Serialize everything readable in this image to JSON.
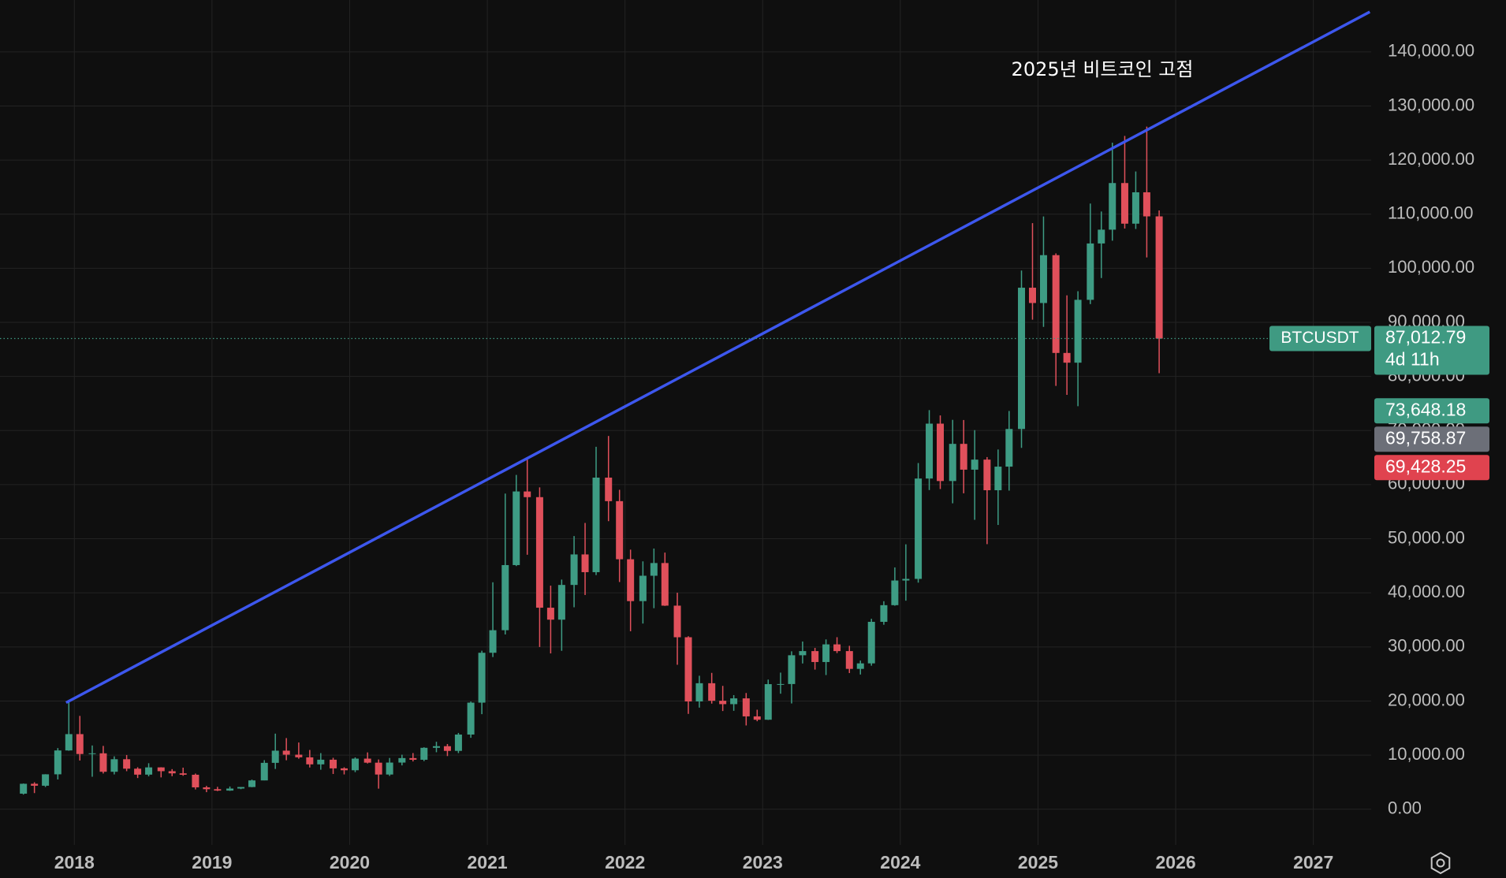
{
  "chart_data": {
    "type": "candlestick",
    "annotation": "2025년 비트코인 고점",
    "up_color": "#3e9c84",
    "down_color": "#e0505b",
    "grid": true,
    "xlim": [
      2017.46,
      2027.42
    ],
    "xticks": [
      2018,
      2019,
      2020,
      2021,
      2022,
      2023,
      2024,
      2025,
      2026,
      2027
    ],
    "ylim": [
      -6600,
      149600
    ],
    "yticks": [
      {
        "value": 0,
        "label": "0.00"
      },
      {
        "value": 10000,
        "label": "10,000.00"
      },
      {
        "value": 20000,
        "label": "20,000.00"
      },
      {
        "value": 30000,
        "label": "30,000.00"
      },
      {
        "value": 40000,
        "label": "40,000.00"
      },
      {
        "value": 50000,
        "label": "50,000.00"
      },
      {
        "value": 60000,
        "label": "60,000.00"
      },
      {
        "value": 70000,
        "label": "70,000.00"
      },
      {
        "value": 80000,
        "label": "80,000.00"
      },
      {
        "value": 90000,
        "label": "90,000.00"
      },
      {
        "value": 100000,
        "label": "100,000.00"
      },
      {
        "value": 110000,
        "label": "110,000.00"
      },
      {
        "value": 120000,
        "label": "120,000.00"
      },
      {
        "value": 130000,
        "label": "130,000.00"
      },
      {
        "value": 140000,
        "label": "140,000.00"
      }
    ],
    "trendline": {
      "color": "#3d57ee",
      "x": [
        2017.94,
        2027.41
      ],
      "y": [
        19700,
        147400
      ]
    },
    "last_price": {
      "symbol": "BTCUSDT",
      "value": 87012.79,
      "label": "87,012.79",
      "countdown": "4d 11h",
      "color": "#3f9a82"
    },
    "price_labels": [
      {
        "value": 73648.18,
        "label": "73,648.18",
        "color": "#3f9a82"
      },
      {
        "value": 69758.87,
        "label": "69,758.87",
        "color": "#6c6f78"
      },
      {
        "value": 69428.25,
        "label": "69,428.25",
        "color": "#e0434f"
      }
    ],
    "candles": {
      "x": [
        2017.63,
        2017.71,
        2017.79,
        2017.88,
        2017.96,
        2018.04,
        2018.13,
        2018.21,
        2018.29,
        2018.38,
        2018.46,
        2018.54,
        2018.63,
        2018.71,
        2018.79,
        2018.88,
        2018.96,
        2019.04,
        2019.13,
        2019.21,
        2019.29,
        2019.38,
        2019.46,
        2019.54,
        2019.63,
        2019.71,
        2019.79,
        2019.88,
        2019.96,
        2020.04,
        2020.13,
        2020.21,
        2020.29,
        2020.38,
        2020.46,
        2020.54,
        2020.63,
        2020.71,
        2020.79,
        2020.88,
        2020.96,
        2021.04,
        2021.13,
        2021.21,
        2021.29,
        2021.38,
        2021.46,
        2021.54,
        2021.63,
        2021.71,
        2021.79,
        2021.88,
        2021.96,
        2022.04,
        2022.13,
        2022.21,
        2022.29,
        2022.38,
        2022.46,
        2022.54,
        2022.63,
        2022.71,
        2022.79,
        2022.88,
        2022.96,
        2023.04,
        2023.13,
        2023.21,
        2023.29,
        2023.38,
        2023.46,
        2023.54,
        2023.63,
        2023.71,
        2023.79,
        2023.88,
        2023.96,
        2024.04,
        2024.13,
        2024.21,
        2024.29,
        2024.38,
        2024.46,
        2024.54,
        2024.63,
        2024.71,
        2024.79,
        2024.88,
        2024.96,
        2025.04,
        2025.13,
        2025.21,
        2025.29,
        2025.38,
        2025.46,
        2025.54,
        2025.63,
        2025.71,
        2025.79,
        2025.88
      ],
      "open": [
        2870,
        4700,
        4340,
        6450,
        10860,
        13880,
        10200,
        10330,
        6920,
        9240,
        7490,
        6390,
        7730,
        7030,
        6630,
        6370,
        4040,
        3700,
        3440,
        3820,
        4100,
        5320,
        8570,
        10820,
        10080,
        9590,
        8290,
        9150,
        7550,
        7200,
        9350,
        8600,
        6410,
        8620,
        9450,
        9140,
        11350,
        11650,
        10780,
        13800,
        19700,
        28920,
        33090,
        45130,
        58740,
        57690,
        37250,
        35040,
        41460,
        47100,
        43820,
        61300,
        56950,
        46210,
        38470,
        43160,
        45510,
        37630,
        31790,
        19920,
        23290,
        20050,
        19420,
        20490,
        17160,
        16540,
        23120,
        23140,
        28460,
        29230,
        27210,
        30470,
        29230,
        25940,
        26960,
        34640,
        37720,
        42280,
        42580,
        61130,
        71280,
        60670,
        67540,
        62770,
        64630,
        58970,
        63330,
        70290,
        96410,
        93580,
        102430,
        84350,
        82550,
        94170,
        104590,
        107140,
        115760,
        108250,
        114050,
        109600
      ],
      "high": [
        4750,
        4980,
        6470,
        11300,
        19800,
        17250,
        11780,
        11700,
        9770,
        10020,
        7760,
        8500,
        7760,
        7410,
        7680,
        6590,
        4310,
        4140,
        4200,
        4100,
        5470,
        9070,
        13970,
        13150,
        12330,
        10950,
        10370,
        9500,
        7750,
        9580,
        10500,
        9190,
        9470,
        10080,
        10380,
        11450,
        12470,
        12050,
        14100,
        19900,
        29300,
        41950,
        58350,
        61800,
        64850,
        59500,
        41330,
        42450,
        50500,
        52920,
        66999,
        69000,
        59050,
        47990,
        45820,
        48190,
        47440,
        40020,
        31980,
        24670,
        25200,
        22800,
        21090,
        21480,
        18390,
        23960,
        25250,
        29190,
        31000,
        29820,
        31390,
        31800,
        30200,
        27480,
        35200,
        38450,
        44700,
        48970,
        64000,
        73780,
        72800,
        71980,
        71950,
        70080,
        65100,
        66500,
        73620,
        99590,
        108350,
        109590,
        102750,
        95000,
        95760,
        111970,
        110500,
        123220,
        124470,
        117900,
        126200,
        110700
      ],
      "low": [
        2700,
        2980,
        4110,
        5500,
        10800,
        9000,
        6000,
        6600,
        6430,
        7030,
        5760,
        6070,
        5880,
        6100,
        6180,
        3650,
        3150,
        3350,
        3390,
        3700,
        4060,
        5330,
        7440,
        9050,
        9330,
        7710,
        7300,
        6510,
        6430,
        6850,
        8450,
        3800,
        6150,
        8100,
        8830,
        8890,
        10530,
        9820,
        10370,
        13200,
        17570,
        28130,
        32300,
        44950,
        47040,
        30000,
        28800,
        29280,
        37330,
        39600,
        43280,
        53250,
        42000,
        32900,
        34320,
        37160,
        37580,
        26700,
        17620,
        18780,
        19520,
        18150,
        18190,
        15480,
        16260,
        16500,
        21350,
        19550,
        26940,
        25810,
        24800,
        28860,
        25170,
        24900,
        26530,
        34100,
        37620,
        38550,
        41880,
        59000,
        59190,
        56550,
        58400,
        53500,
        49000,
        52550,
        58900,
        66800,
        90500,
        89160,
        78260,
        76600,
        74500,
        93380,
        98200,
        105100,
        107350,
        107270,
        102000,
        80600
      ],
      "close": [
        4700,
        4340,
        6450,
        10860,
        13880,
        10200,
        10330,
        6920,
        9240,
        7490,
        6390,
        7730,
        7030,
        6630,
        6370,
        4040,
        3700,
        3440,
        3820,
        4100,
        5320,
        8570,
        10820,
        10080,
        9590,
        8290,
        9150,
        7550,
        7200,
        9350,
        8600,
        6410,
        8620,
        9450,
        9140,
        11350,
        11650,
        10780,
        13800,
        19700,
        28920,
        33090,
        45130,
        58740,
        57690,
        37250,
        35040,
        41460,
        47100,
        43820,
        61300,
        56950,
        46210,
        38470,
        43160,
        45510,
        37630,
        31790,
        19920,
        23290,
        20050,
        19420,
        20490,
        17160,
        16540,
        23120,
        23140,
        28460,
        29230,
        27210,
        30470,
        29230,
        25940,
        26960,
        34640,
        37720,
        42280,
        42580,
        61130,
        71280,
        60670,
        67540,
        62770,
        64630,
        58970,
        63330,
        70290,
        96410,
        93580,
        102430,
        84350,
        82550,
        94170,
        104590,
        107140,
        115760,
        108250,
        114050,
        109600,
        87010
      ]
    }
  }
}
